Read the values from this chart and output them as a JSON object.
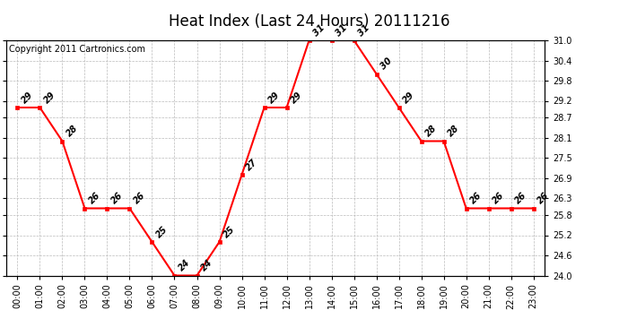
{
  "title": "Heat Index (Last 24 Hours) 20111216",
  "copyright": "Copyright 2011 Cartronics.com",
  "hours": [
    "00:00",
    "01:00",
    "02:00",
    "03:00",
    "04:00",
    "05:00",
    "06:00",
    "07:00",
    "08:00",
    "09:00",
    "10:00",
    "11:00",
    "12:00",
    "13:00",
    "14:00",
    "15:00",
    "16:00",
    "17:00",
    "18:00",
    "19:00",
    "20:00",
    "21:00",
    "22:00",
    "23:00"
  ],
  "values": [
    29,
    29,
    28,
    26,
    26,
    26,
    25,
    24,
    24,
    25,
    27,
    29,
    29,
    31,
    31,
    31,
    30,
    29,
    28,
    28,
    26,
    26,
    26,
    26
  ],
  "ylim": [
    24.0,
    31.0
  ],
  "yticks": [
    24.0,
    24.6,
    25.2,
    25.8,
    26.3,
    26.9,
    27.5,
    28.1,
    28.7,
    29.2,
    29.8,
    30.4,
    31.0
  ],
  "line_color": "red",
  "marker_color": "red",
  "bg_color": "white",
  "plot_bg_color": "white",
  "grid_color": "#bbbbbb",
  "title_fontsize": 12,
  "label_fontsize": 7,
  "annot_fontsize": 7,
  "copyright_fontsize": 7
}
